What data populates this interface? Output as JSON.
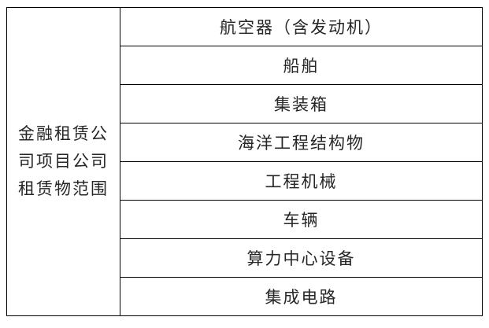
{
  "colors": {
    "border": "#000000",
    "text": "#262626",
    "background": "#ffffff"
  },
  "table": {
    "header": {
      "full_text": "金融租赁公司项目公司租赁物范围",
      "lines": [
        "金融租赁公",
        "司项目公司",
        "租赁物范围"
      ]
    },
    "rows": [
      {
        "label": "航空器（含发动机）"
      },
      {
        "label": "船舶"
      },
      {
        "label": "集装箱"
      },
      {
        "label": "海洋工程结构物"
      },
      {
        "label": "工程机械"
      },
      {
        "label": "车辆"
      },
      {
        "label": "算力中心设备"
      },
      {
        "label": "集成电路"
      }
    ]
  }
}
